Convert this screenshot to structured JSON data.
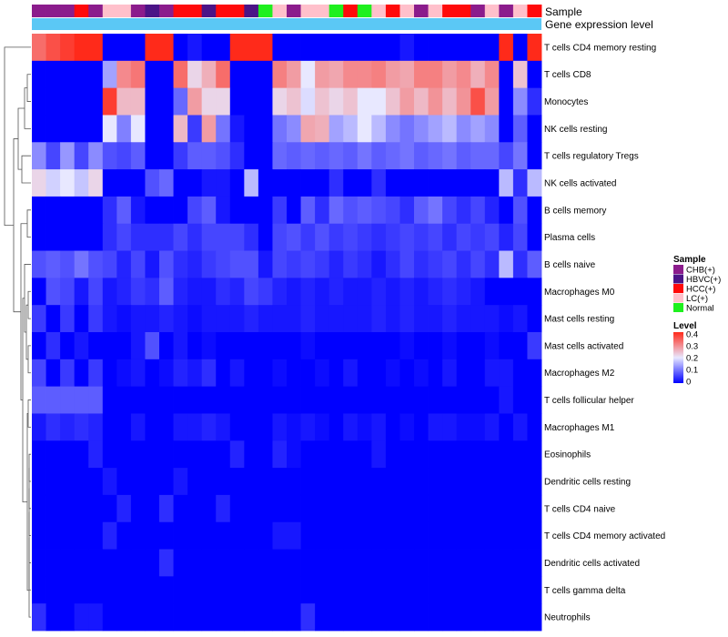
{
  "chart_data": {
    "type": "heatmap",
    "title": "",
    "annotation_titles": {
      "sample": "Sample",
      "expression": "Gene expression level"
    },
    "rows": [
      "T cells CD4 memory resting",
      "T cells CD8",
      "Monocytes",
      "NK cells resting",
      "T cells regulatory  Tregs",
      "NK cells activated",
      "B cells memory",
      "Plasma cells",
      "B cells naive",
      "Macrophages M0",
      "Mast cells resting",
      "Mast cells activated",
      "Macrophages M2",
      "T cells follicular helper",
      "Macrophages M1",
      "Eosinophils",
      "Dendritic cells resting",
      "T cells CD4 naive",
      "T cells CD4 memory activated",
      "Dendritic cells activated",
      "T cells gamma delta",
      "Neutrophils"
    ],
    "columns_sample": [
      "CHB(+)",
      "CHB(+)",
      "CHB(+)",
      "HCC(+)",
      "CHB(+)",
      "LC(+)",
      "LC(+)",
      "CHB(+)",
      "HBVC(+)",
      "CHB(+)",
      "HCC(+)",
      "HCC(+)",
      "HBVC(+)",
      "HCC(+)",
      "HCC(+)",
      "HBVC(+)",
      "Normal",
      "LC(+)",
      "CHB(+)",
      "LC(+)",
      "LC(+)",
      "Normal",
      "HCC(+)",
      "Normal",
      "LC(+)",
      "HCC(+)",
      "LC(+)",
      "CHB(+)",
      "LC(+)",
      "HCC(+)",
      "HCC(+)",
      "CHB(+)",
      "LC(+)",
      "CHB(+)",
      "LC(+)",
      "HCC(+)"
    ],
    "values": [
      [
        0.33,
        0.36,
        0.38,
        0.4,
        0.4,
        0.0,
        0.0,
        0.0,
        0.4,
        0.4,
        0.0,
        0.02,
        0.0,
        0.0,
        0.4,
        0.4,
        0.4,
        0.0,
        0.0,
        0.0,
        0.0,
        0.0,
        0.0,
        0.0,
        0.0,
        0.0,
        0.02,
        0.0,
        0.0,
        0.0,
        0.0,
        0.0,
        0.0,
        0.4,
        0.0,
        0.4
      ],
      [
        0.0,
        0.0,
        0.0,
        0.0,
        0.0,
        0.14,
        0.3,
        0.32,
        0.0,
        0.0,
        0.33,
        0.22,
        0.26,
        0.33,
        0.0,
        0.0,
        0.0,
        0.31,
        0.28,
        0.2,
        0.28,
        0.27,
        0.3,
        0.3,
        0.31,
        0.28,
        0.27,
        0.31,
        0.31,
        0.28,
        0.3,
        0.26,
        0.3,
        0.0,
        0.24,
        0.0
      ],
      [
        0.0,
        0.0,
        0.0,
        0.0,
        0.0,
        0.38,
        0.25,
        0.25,
        0.0,
        0.0,
        0.09,
        0.28,
        0.22,
        0.22,
        0.0,
        0.0,
        0.0,
        0.22,
        0.24,
        0.19,
        0.24,
        0.22,
        0.24,
        0.2,
        0.2,
        0.24,
        0.28,
        0.25,
        0.29,
        0.25,
        0.29,
        0.36,
        0.28,
        0.0,
        0.12,
        0.04
      ],
      [
        0.0,
        0.0,
        0.0,
        0.0,
        0.0,
        0.2,
        0.11,
        0.2,
        0.0,
        0.0,
        0.25,
        0.05,
        0.28,
        0.1,
        0.02,
        0.0,
        0.0,
        0.1,
        0.12,
        0.27,
        0.26,
        0.14,
        0.16,
        0.2,
        0.16,
        0.12,
        0.1,
        0.12,
        0.14,
        0.16,
        0.12,
        0.14,
        0.12,
        0.0,
        0.08,
        0.0
      ],
      [
        0.12,
        0.06,
        0.13,
        0.06,
        0.12,
        0.07,
        0.06,
        0.08,
        0.0,
        0.0,
        0.05,
        0.08,
        0.08,
        0.07,
        0.04,
        0.0,
        0.0,
        0.09,
        0.08,
        0.09,
        0.08,
        0.09,
        0.08,
        0.1,
        0.08,
        0.09,
        0.1,
        0.08,
        0.09,
        0.1,
        0.08,
        0.09,
        0.09,
        0.06,
        0.1,
        0.0
      ],
      [
        0.22,
        0.18,
        0.2,
        0.17,
        0.22,
        0.0,
        0.0,
        0.0,
        0.07,
        0.09,
        0.0,
        0.0,
        0.02,
        0.02,
        0.0,
        0.16,
        0.0,
        0.0,
        0.0,
        0.0,
        0.0,
        0.04,
        0.0,
        0.0,
        0.04,
        0.0,
        0.0,
        0.0,
        0.0,
        0.0,
        0.0,
        0.0,
        0.0,
        0.16,
        0.04,
        0.16
      ],
      [
        0.0,
        0.0,
        0.0,
        0.0,
        0.0,
        0.04,
        0.08,
        0.02,
        0.0,
        0.0,
        0.0,
        0.06,
        0.08,
        0.02,
        0.0,
        0.0,
        0.0,
        0.05,
        0.0,
        0.08,
        0.04,
        0.09,
        0.07,
        0.08,
        0.07,
        0.06,
        0.04,
        0.08,
        0.1,
        0.06,
        0.04,
        0.06,
        0.03,
        0.0,
        0.07,
        0.0
      ],
      [
        0.0,
        0.0,
        0.0,
        0.0,
        0.0,
        0.04,
        0.06,
        0.04,
        0.04,
        0.04,
        0.06,
        0.04,
        0.06,
        0.06,
        0.06,
        0.04,
        0.0,
        0.06,
        0.07,
        0.05,
        0.07,
        0.05,
        0.06,
        0.05,
        0.04,
        0.05,
        0.06,
        0.05,
        0.06,
        0.04,
        0.06,
        0.05,
        0.06,
        0.03,
        0.06,
        0.0
      ],
      [
        0.07,
        0.08,
        0.07,
        0.1,
        0.07,
        0.06,
        0.03,
        0.06,
        0.02,
        0.07,
        0.04,
        0.03,
        0.05,
        0.06,
        0.07,
        0.07,
        0.02,
        0.06,
        0.05,
        0.06,
        0.05,
        0.03,
        0.05,
        0.04,
        0.02,
        0.04,
        0.06,
        0.04,
        0.05,
        0.06,
        0.04,
        0.06,
        0.04,
        0.16,
        0.04,
        0.08
      ],
      [
        0.0,
        0.07,
        0.06,
        0.02,
        0.06,
        0.02,
        0.03,
        0.05,
        0.04,
        0.08,
        0.03,
        0.02,
        0.02,
        0.04,
        0.03,
        0.06,
        0.05,
        0.03,
        0.02,
        0.03,
        0.02,
        0.03,
        0.02,
        0.02,
        0.03,
        0.02,
        0.03,
        0.02,
        0.03,
        0.04,
        0.03,
        0.02,
        0.0,
        0.0,
        0.0,
        0.0
      ],
      [
        0.05,
        0.0,
        0.05,
        0.0,
        0.05,
        0.02,
        0.01,
        0.02,
        0.02,
        0.03,
        0.02,
        0.01,
        0.02,
        0.02,
        0.02,
        0.03,
        0.02,
        0.02,
        0.02,
        0.03,
        0.02,
        0.02,
        0.02,
        0.02,
        0.03,
        0.02,
        0.03,
        0.02,
        0.02,
        0.03,
        0.02,
        0.02,
        0.02,
        0.01,
        0.02,
        0.0
      ],
      [
        0.0,
        0.04,
        0.0,
        0.02,
        0.0,
        0.0,
        0.0,
        0.02,
        0.07,
        0.0,
        0.02,
        0.0,
        0.01,
        0.0,
        0.0,
        0.0,
        0.0,
        0.0,
        0.0,
        0.01,
        0.0,
        0.0,
        0.0,
        0.0,
        0.0,
        0.0,
        0.01,
        0.0,
        0.0,
        0.01,
        0.0,
        0.0,
        0.01,
        0.0,
        0.0,
        0.05
      ],
      [
        0.06,
        0.0,
        0.05,
        0.0,
        0.05,
        0.0,
        0.01,
        0.02,
        0.0,
        0.01,
        0.03,
        0.02,
        0.04,
        0.0,
        0.02,
        0.0,
        0.0,
        0.01,
        0.0,
        0.0,
        0.01,
        0.0,
        0.02,
        0.0,
        0.0,
        0.01,
        0.0,
        0.01,
        0.0,
        0.02,
        0.0,
        0.0,
        0.02,
        0.02,
        0.0,
        0.0
      ],
      [
        0.08,
        0.08,
        0.08,
        0.08,
        0.08,
        0.0,
        0.0,
        0.0,
        0.0,
        0.0,
        0.0,
        0.0,
        0.0,
        0.0,
        0.0,
        0.0,
        0.0,
        0.0,
        0.0,
        0.0,
        0.0,
        0.0,
        0.0,
        0.0,
        0.0,
        0.0,
        0.0,
        0.0,
        0.0,
        0.0,
        0.0,
        0.0,
        0.0,
        0.02,
        0.0,
        0.0
      ],
      [
        0.02,
        0.04,
        0.03,
        0.04,
        0.03,
        0.0,
        0.0,
        0.02,
        0.0,
        0.0,
        0.02,
        0.02,
        0.03,
        0.02,
        0.0,
        0.0,
        0.0,
        0.02,
        0.01,
        0.02,
        0.01,
        0.0,
        0.02,
        0.01,
        0.02,
        0.0,
        0.01,
        0.0,
        0.02,
        0.02,
        0.01,
        0.01,
        0.02,
        0.0,
        0.02,
        0.0
      ],
      [
        0.0,
        0.0,
        0.0,
        0.0,
        0.03,
        0.0,
        0.0,
        0.0,
        0.0,
        0.0,
        0.0,
        0.0,
        0.0,
        0.0,
        0.03,
        0.0,
        0.0,
        0.03,
        0.01,
        0.0,
        0.0,
        0.0,
        0.0,
        0.0,
        0.02,
        0.0,
        0.0,
        0.0,
        0.0,
        0.0,
        0.0,
        0.0,
        0.0,
        0.0,
        0.0,
        0.0
      ],
      [
        0.0,
        0.0,
        0.0,
        0.0,
        0.0,
        0.02,
        0.0,
        0.0,
        0.0,
        0.0,
        0.02,
        0.0,
        0.0,
        0.0,
        0.0,
        0.0,
        0.0,
        0.0,
        0.0,
        0.0,
        0.0,
        0.0,
        0.0,
        0.0,
        0.0,
        0.0,
        0.0,
        0.0,
        0.0,
        0.0,
        0.0,
        0.0,
        0.0,
        0.0,
        0.0,
        0.0
      ],
      [
        0.0,
        0.0,
        0.0,
        0.0,
        0.0,
        0.0,
        0.03,
        0.0,
        0.0,
        0.04,
        0.0,
        0.0,
        0.0,
        0.03,
        0.0,
        0.0,
        0.0,
        0.0,
        0.0,
        0.0,
        0.0,
        0.0,
        0.0,
        0.0,
        0.0,
        0.0,
        0.0,
        0.0,
        0.0,
        0.0,
        0.0,
        0.0,
        0.0,
        0.0,
        0.0,
        0.0
      ],
      [
        0.0,
        0.0,
        0.0,
        0.0,
        0.0,
        0.03,
        0.0,
        0.0,
        0.0,
        0.0,
        0.0,
        0.0,
        0.0,
        0.0,
        0.0,
        0.0,
        0.0,
        0.02,
        0.02,
        0.0,
        0.0,
        0.0,
        0.0,
        0.0,
        0.0,
        0.0,
        0.0,
        0.0,
        0.0,
        0.0,
        0.0,
        0.0,
        0.0,
        0.0,
        0.0,
        0.0
      ],
      [
        0.0,
        0.0,
        0.0,
        0.0,
        0.0,
        0.0,
        0.0,
        0.0,
        0.0,
        0.04,
        0.0,
        0.0,
        0.0,
        0.0,
        0.0,
        0.0,
        0.0,
        0.0,
        0.0,
        0.0,
        0.0,
        0.0,
        0.0,
        0.0,
        0.0,
        0.0,
        0.0,
        0.0,
        0.0,
        0.0,
        0.0,
        0.0,
        0.0,
        0.0,
        0.0,
        0.0
      ],
      [
        0.0,
        0.0,
        0.0,
        0.0,
        0.0,
        0.0,
        0.0,
        0.0,
        0.0,
        0.0,
        0.0,
        0.0,
        0.0,
        0.0,
        0.0,
        0.0,
        0.0,
        0.0,
        0.0,
        0.0,
        0.0,
        0.0,
        0.0,
        0.0,
        0.0,
        0.0,
        0.0,
        0.0,
        0.0,
        0.0,
        0.0,
        0.0,
        0.0,
        0.0,
        0.0,
        0.0
      ],
      [
        0.04,
        0.0,
        0.0,
        0.02,
        0.02,
        0.0,
        0.0,
        0.0,
        0.0,
        0.0,
        0.0,
        0.0,
        0.0,
        0.0,
        0.0,
        0.0,
        0.0,
        0.0,
        0.0,
        0.04,
        0.0,
        0.0,
        0.0,
        0.0,
        0.0,
        0.0,
        0.0,
        0.0,
        0.0,
        0.0,
        0.0,
        0.0,
        0.0,
        0.0,
        0.0,
        0.0
      ]
    ],
    "legend": {
      "sample": {
        "title": "Sample",
        "items": [
          {
            "label": "CHB(+)",
            "color": "#8B1C8C"
          },
          {
            "label": "HBVC(+)",
            "color": "#4B1487"
          },
          {
            "label": "HCC(+)",
            "color": "#FF0A0A"
          },
          {
            "label": "LC(+)",
            "color": "#FFC0CB"
          },
          {
            "label": "Normal",
            "color": "#1EF01E"
          }
        ]
      },
      "level": {
        "title": "Level",
        "ticks": [
          "0.4",
          "0.3",
          "0.2",
          "0.1",
          "0"
        ],
        "range": [
          0,
          0.4
        ]
      }
    },
    "colors": {
      "low": "#0000FF",
      "mid": "#E8E8FF",
      "high": "#FF2A1A",
      "expression_bar": "#5BC8F5"
    }
  }
}
